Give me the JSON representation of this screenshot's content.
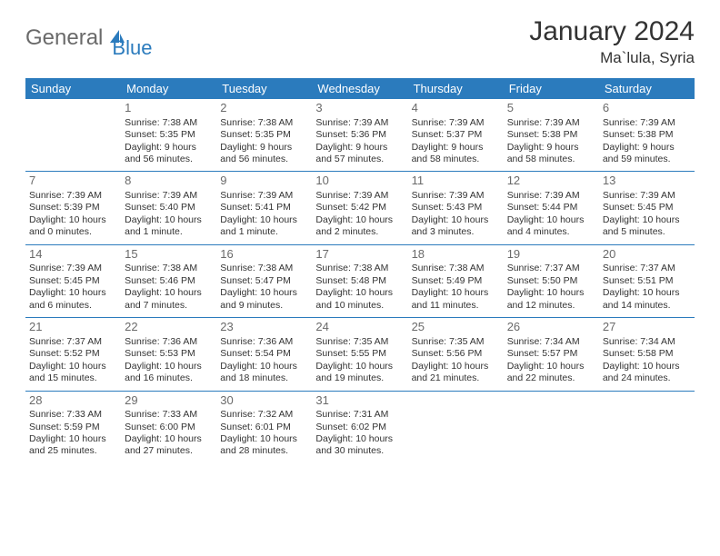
{
  "logo": {
    "word1": "General",
    "word2": "Blue",
    "icon_fill": "#2b7bbd"
  },
  "header": {
    "title": "January 2024",
    "location": "Ma`lula, Syria"
  },
  "columns": [
    "Sunday",
    "Monday",
    "Tuesday",
    "Wednesday",
    "Thursday",
    "Friday",
    "Saturday"
  ],
  "theme": {
    "header_bg": "#2b7bbd",
    "header_fg": "#ffffff",
    "rule": "#2b7bbd",
    "daynum_color": "#6a6a6a"
  },
  "weeks": [
    [
      null,
      {
        "n": "1",
        "sr": "Sunrise: 7:38 AM",
        "ss": "Sunset: 5:35 PM",
        "d1": "Daylight: 9 hours",
        "d2": "and 56 minutes."
      },
      {
        "n": "2",
        "sr": "Sunrise: 7:38 AM",
        "ss": "Sunset: 5:35 PM",
        "d1": "Daylight: 9 hours",
        "d2": "and 56 minutes."
      },
      {
        "n": "3",
        "sr": "Sunrise: 7:39 AM",
        "ss": "Sunset: 5:36 PM",
        "d1": "Daylight: 9 hours",
        "d2": "and 57 minutes."
      },
      {
        "n": "4",
        "sr": "Sunrise: 7:39 AM",
        "ss": "Sunset: 5:37 PM",
        "d1": "Daylight: 9 hours",
        "d2": "and 58 minutes."
      },
      {
        "n": "5",
        "sr": "Sunrise: 7:39 AM",
        "ss": "Sunset: 5:38 PM",
        "d1": "Daylight: 9 hours",
        "d2": "and 58 minutes."
      },
      {
        "n": "6",
        "sr": "Sunrise: 7:39 AM",
        "ss": "Sunset: 5:38 PM",
        "d1": "Daylight: 9 hours",
        "d2": "and 59 minutes."
      }
    ],
    [
      {
        "n": "7",
        "sr": "Sunrise: 7:39 AM",
        "ss": "Sunset: 5:39 PM",
        "d1": "Daylight: 10 hours",
        "d2": "and 0 minutes."
      },
      {
        "n": "8",
        "sr": "Sunrise: 7:39 AM",
        "ss": "Sunset: 5:40 PM",
        "d1": "Daylight: 10 hours",
        "d2": "and 1 minute."
      },
      {
        "n": "9",
        "sr": "Sunrise: 7:39 AM",
        "ss": "Sunset: 5:41 PM",
        "d1": "Daylight: 10 hours",
        "d2": "and 1 minute."
      },
      {
        "n": "10",
        "sr": "Sunrise: 7:39 AM",
        "ss": "Sunset: 5:42 PM",
        "d1": "Daylight: 10 hours",
        "d2": "and 2 minutes."
      },
      {
        "n": "11",
        "sr": "Sunrise: 7:39 AM",
        "ss": "Sunset: 5:43 PM",
        "d1": "Daylight: 10 hours",
        "d2": "and 3 minutes."
      },
      {
        "n": "12",
        "sr": "Sunrise: 7:39 AM",
        "ss": "Sunset: 5:44 PM",
        "d1": "Daylight: 10 hours",
        "d2": "and 4 minutes."
      },
      {
        "n": "13",
        "sr": "Sunrise: 7:39 AM",
        "ss": "Sunset: 5:45 PM",
        "d1": "Daylight: 10 hours",
        "d2": "and 5 minutes."
      }
    ],
    [
      {
        "n": "14",
        "sr": "Sunrise: 7:39 AM",
        "ss": "Sunset: 5:45 PM",
        "d1": "Daylight: 10 hours",
        "d2": "and 6 minutes."
      },
      {
        "n": "15",
        "sr": "Sunrise: 7:38 AM",
        "ss": "Sunset: 5:46 PM",
        "d1": "Daylight: 10 hours",
        "d2": "and 7 minutes."
      },
      {
        "n": "16",
        "sr": "Sunrise: 7:38 AM",
        "ss": "Sunset: 5:47 PM",
        "d1": "Daylight: 10 hours",
        "d2": "and 9 minutes."
      },
      {
        "n": "17",
        "sr": "Sunrise: 7:38 AM",
        "ss": "Sunset: 5:48 PM",
        "d1": "Daylight: 10 hours",
        "d2": "and 10 minutes."
      },
      {
        "n": "18",
        "sr": "Sunrise: 7:38 AM",
        "ss": "Sunset: 5:49 PM",
        "d1": "Daylight: 10 hours",
        "d2": "and 11 minutes."
      },
      {
        "n": "19",
        "sr": "Sunrise: 7:37 AM",
        "ss": "Sunset: 5:50 PM",
        "d1": "Daylight: 10 hours",
        "d2": "and 12 minutes."
      },
      {
        "n": "20",
        "sr": "Sunrise: 7:37 AM",
        "ss": "Sunset: 5:51 PM",
        "d1": "Daylight: 10 hours",
        "d2": "and 14 minutes."
      }
    ],
    [
      {
        "n": "21",
        "sr": "Sunrise: 7:37 AM",
        "ss": "Sunset: 5:52 PM",
        "d1": "Daylight: 10 hours",
        "d2": "and 15 minutes."
      },
      {
        "n": "22",
        "sr": "Sunrise: 7:36 AM",
        "ss": "Sunset: 5:53 PM",
        "d1": "Daylight: 10 hours",
        "d2": "and 16 minutes."
      },
      {
        "n": "23",
        "sr": "Sunrise: 7:36 AM",
        "ss": "Sunset: 5:54 PM",
        "d1": "Daylight: 10 hours",
        "d2": "and 18 minutes."
      },
      {
        "n": "24",
        "sr": "Sunrise: 7:35 AM",
        "ss": "Sunset: 5:55 PM",
        "d1": "Daylight: 10 hours",
        "d2": "and 19 minutes."
      },
      {
        "n": "25",
        "sr": "Sunrise: 7:35 AM",
        "ss": "Sunset: 5:56 PM",
        "d1": "Daylight: 10 hours",
        "d2": "and 21 minutes."
      },
      {
        "n": "26",
        "sr": "Sunrise: 7:34 AM",
        "ss": "Sunset: 5:57 PM",
        "d1": "Daylight: 10 hours",
        "d2": "and 22 minutes."
      },
      {
        "n": "27",
        "sr": "Sunrise: 7:34 AM",
        "ss": "Sunset: 5:58 PM",
        "d1": "Daylight: 10 hours",
        "d2": "and 24 minutes."
      }
    ],
    [
      {
        "n": "28",
        "sr": "Sunrise: 7:33 AM",
        "ss": "Sunset: 5:59 PM",
        "d1": "Daylight: 10 hours",
        "d2": "and 25 minutes."
      },
      {
        "n": "29",
        "sr": "Sunrise: 7:33 AM",
        "ss": "Sunset: 6:00 PM",
        "d1": "Daylight: 10 hours",
        "d2": "and 27 minutes."
      },
      {
        "n": "30",
        "sr": "Sunrise: 7:32 AM",
        "ss": "Sunset: 6:01 PM",
        "d1": "Daylight: 10 hours",
        "d2": "and 28 minutes."
      },
      {
        "n": "31",
        "sr": "Sunrise: 7:31 AM",
        "ss": "Sunset: 6:02 PM",
        "d1": "Daylight: 10 hours",
        "d2": "and 30 minutes."
      },
      null,
      null,
      null
    ]
  ]
}
